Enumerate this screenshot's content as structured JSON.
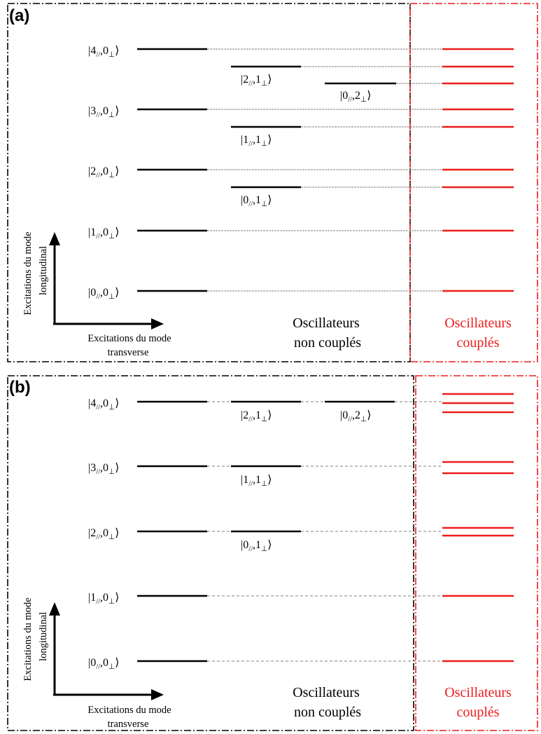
{
  "colors": {
    "black": "#000000",
    "red": "#ee1c1c",
    "dash": "#808080"
  },
  "panel_a": {
    "label": "(a)",
    "kets": [
      {
        "n": "4",
        "m": "0",
        "perp_sub": "⊥"
      },
      {
        "n": "3",
        "m": "0",
        "perp_sub": "⊥"
      },
      {
        "n": "2",
        "m": "0",
        "perp_sub": "⊥"
      },
      {
        "n": "1",
        "m": "0",
        "perp_sub": "⊥"
      },
      {
        "n": "0",
        "m": "0",
        "perp_sub": "⊥"
      }
    ],
    "transverse_kets": [
      {
        "n": "2",
        "m": "1",
        "perp_sub": "⊥"
      },
      {
        "n": "0",
        "m": "2",
        "perp_sub": "⊥"
      },
      {
        "n": "1",
        "m": "1",
        "perp_sub": "⊥"
      },
      {
        "n": "0",
        "m": "1",
        "perp_sub": "⊥"
      }
    ],
    "uncoupled_label": [
      "Oscillateurs",
      "non couplés"
    ],
    "coupled_label": [
      "Oscillateurs",
      "couplés"
    ],
    "y_axis_label": [
      "Excitations du mode",
      "longitudinal"
    ],
    "x_axis_label": [
      "Excitations du mode",
      "transverse"
    ]
  },
  "panel_b": {
    "label": "(b)",
    "kets": [
      {
        "n": "4",
        "m": "0",
        "perp_sub": "⊥"
      },
      {
        "n": "3",
        "m": "0",
        "perp_sub": "⊥"
      },
      {
        "n": "2",
        "m": "0",
        "perp_sub": "⊥"
      },
      {
        "n": "1",
        "m": "0",
        "perp_sub": "⊥"
      },
      {
        "n": "0",
        "m": "0",
        "perp_sub": "⊥"
      }
    ],
    "transverse_kets": [
      {
        "n": "2",
        "m": "1",
        "perp_sub": "⊥"
      },
      {
        "n": "0",
        "m": "2",
        "perp_sub": "⊥"
      },
      {
        "n": "1",
        "m": "1",
        "perp_sub": "⊥"
      },
      {
        "n": "0",
        "m": "1",
        "perp_sub": "⊥"
      }
    ],
    "uncoupled_label": [
      "Oscillateurs",
      "non couplés"
    ],
    "coupled_label": [
      "Oscillateurs",
      "couplés"
    ],
    "y_axis_label": [
      "Excitations du mode",
      "longitudinal"
    ],
    "x_axis_label": [
      "Excitations du mode",
      "transverse"
    ]
  },
  "par_sub": "//"
}
